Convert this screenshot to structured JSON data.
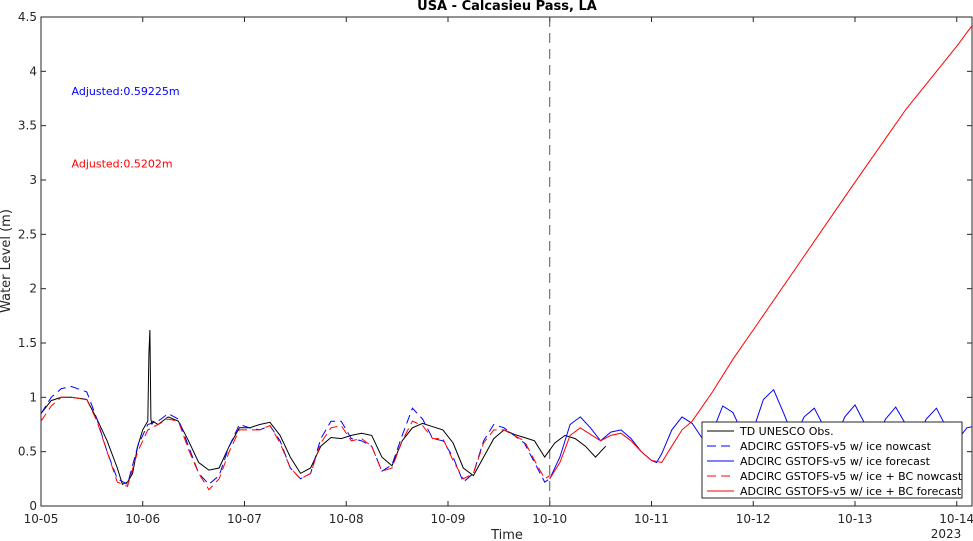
{
  "chart_data": {
    "type": "line",
    "title": "USA - Calcasieu Pass, LA",
    "xlabel": "Time",
    "ylabel": "Water Level (m)",
    "xlim": [
      0,
      9.15
    ],
    "ylim": [
      0,
      4.5
    ],
    "x_ticks": [
      {
        "value": 0,
        "label": "10-05"
      },
      {
        "value": 1,
        "label": "10-06"
      },
      {
        "value": 2,
        "label": "10-07"
      },
      {
        "value": 3,
        "label": "10-08"
      },
      {
        "value": 4,
        "label": "10-09"
      },
      {
        "value": 5,
        "label": "10-10"
      },
      {
        "value": 6,
        "label": "10-11"
      },
      {
        "value": 7,
        "label": "10-12"
      },
      {
        "value": 8,
        "label": "10-13"
      },
      {
        "value": 9,
        "label": "10-14"
      }
    ],
    "x_year_label": "2023",
    "y_ticks": [
      0,
      0.5,
      1,
      1.5,
      2,
      2.5,
      3,
      3.5,
      4,
      4.5
    ],
    "y_tick_labels": [
      "0",
      "0.5",
      "1",
      "1.5",
      "2",
      "2.5",
      "3",
      "3.5",
      "4",
      "4.5"
    ],
    "vline_x": 5.0,
    "annotations": [
      {
        "text": "Adjusted:0.59225m",
        "color": "#0000ff",
        "x": 0.3,
        "y": 3.82
      },
      {
        "text": "Adjusted:0.5202m",
        "color": "#ff0000",
        "x": 0.3,
        "y": 3.15
      }
    ],
    "legend_position": "bottom-right",
    "series": [
      {
        "name": "TD UNESCO Obs.",
        "color": "#000000",
        "style": "solid",
        "x": [
          0.0,
          0.1,
          0.2,
          0.3,
          0.45,
          0.55,
          0.65,
          0.75,
          0.8,
          0.85,
          0.9,
          0.95,
          1.0,
          1.03,
          1.05,
          1.06,
          1.07,
          1.08,
          1.09,
          1.1,
          1.15,
          1.25,
          1.35,
          1.45,
          1.55,
          1.65,
          1.75,
          1.85,
          1.95,
          2.05,
          2.15,
          2.25,
          2.35,
          2.45,
          2.55,
          2.65,
          2.75,
          2.85,
          2.95,
          3.05,
          3.15,
          3.25,
          3.35,
          3.45,
          3.55,
          3.65,
          3.75,
          3.85,
          3.95,
          4.05,
          4.15,
          4.25,
          4.35,
          4.45,
          4.55,
          4.65,
          4.75,
          4.85,
          4.95,
          5.05,
          5.15,
          5.25,
          5.35,
          5.45,
          5.55
        ],
        "y": [
          0.85,
          0.97,
          1.0,
          1.0,
          0.98,
          0.8,
          0.6,
          0.35,
          0.2,
          0.22,
          0.3,
          0.55,
          0.7,
          0.75,
          0.78,
          1.4,
          1.62,
          0.8,
          0.75,
          0.78,
          0.75,
          0.82,
          0.78,
          0.6,
          0.4,
          0.33,
          0.35,
          0.55,
          0.72,
          0.72,
          0.75,
          0.77,
          0.65,
          0.45,
          0.3,
          0.35,
          0.55,
          0.63,
          0.62,
          0.65,
          0.67,
          0.65,
          0.45,
          0.37,
          0.6,
          0.72,
          0.76,
          0.73,
          0.7,
          0.58,
          0.35,
          0.28,
          0.45,
          0.62,
          0.7,
          0.66,
          0.63,
          0.6,
          0.45,
          0.58,
          0.65,
          0.62,
          0.55,
          0.45,
          0.55
        ]
      },
      {
        "name": "ADCIRC GSTOFS-v5 w/ ice nowcast",
        "color": "#0000ff",
        "style": "dashed",
        "x": [
          0.0,
          0.1,
          0.2,
          0.3,
          0.45,
          0.55,
          0.65,
          0.75,
          0.85,
          0.95,
          1.05,
          1.15,
          1.25,
          1.35,
          1.45,
          1.55,
          1.65,
          1.75,
          1.85,
          1.95,
          2.05,
          2.15,
          2.25,
          2.35,
          2.45,
          2.55,
          2.65,
          2.75,
          2.85,
          2.95,
          3.05,
          3.15,
          3.25,
          3.35,
          3.45,
          3.55,
          3.65,
          3.75,
          3.85,
          3.95,
          4.05,
          4.15,
          4.25,
          4.35,
          4.45,
          4.55,
          4.65,
          4.75,
          4.85,
          4.95,
          5.0
        ],
        "y": [
          0.85,
          1.0,
          1.08,
          1.1,
          1.05,
          0.8,
          0.5,
          0.25,
          0.2,
          0.55,
          0.75,
          0.78,
          0.85,
          0.8,
          0.55,
          0.3,
          0.2,
          0.28,
          0.55,
          0.75,
          0.72,
          0.7,
          0.74,
          0.6,
          0.35,
          0.25,
          0.3,
          0.62,
          0.78,
          0.78,
          0.62,
          0.6,
          0.55,
          0.32,
          0.38,
          0.65,
          0.9,
          0.8,
          0.62,
          0.6,
          0.45,
          0.22,
          0.3,
          0.6,
          0.75,
          0.72,
          0.65,
          0.58,
          0.4,
          0.22,
          0.25
        ]
      },
      {
        "name": "ADCIRC GSTOFS-v5 w/ ice forecast",
        "color": "#0000ff",
        "style": "solid",
        "x": [
          5.0,
          5.1,
          5.2,
          5.3,
          5.4,
          5.5,
          5.6,
          5.7,
          5.8,
          5.9,
          6.0,
          6.05,
          6.1,
          6.2,
          6.3,
          6.4,
          6.5,
          6.6,
          6.7,
          6.8,
          6.9,
          7.0,
          7.1,
          7.2,
          7.3,
          7.4,
          7.5,
          7.6,
          7.7,
          7.8,
          7.9,
          8.0,
          8.1,
          8.2,
          8.3,
          8.4,
          8.5,
          8.6,
          8.7,
          8.8,
          8.9,
          9.0,
          9.1,
          9.15
        ],
        "y": [
          0.25,
          0.45,
          0.75,
          0.82,
          0.72,
          0.6,
          0.68,
          0.7,
          0.62,
          0.5,
          0.42,
          0.4,
          0.48,
          0.7,
          0.82,
          0.76,
          0.62,
          0.68,
          0.92,
          0.86,
          0.66,
          0.7,
          0.98,
          1.07,
          0.85,
          0.62,
          0.82,
          0.9,
          0.72,
          0.6,
          0.82,
          0.93,
          0.75,
          0.6,
          0.8,
          0.91,
          0.75,
          0.6,
          0.8,
          0.9,
          0.72,
          0.6,
          0.72,
          0.73
        ]
      },
      {
        "name": "ADCIRC GSTOFS-v5 w/ ice + BC nowcast",
        "color": "#ff0000",
        "style": "dashed",
        "x": [
          0.0,
          0.1,
          0.2,
          0.3,
          0.45,
          0.55,
          0.65,
          0.75,
          0.85,
          0.95,
          1.05,
          1.15,
          1.25,
          1.35,
          1.45,
          1.55,
          1.65,
          1.75,
          1.85,
          1.95,
          2.05,
          2.15,
          2.25,
          2.35,
          2.45,
          2.55,
          2.65,
          2.75,
          2.85,
          2.95,
          3.05,
          3.15,
          3.25,
          3.35,
          3.45,
          3.55,
          3.65,
          3.75,
          3.85,
          3.95,
          4.05,
          4.15,
          4.25,
          4.35,
          4.45,
          4.55,
          4.65,
          4.75,
          4.85,
          4.95,
          5.0
        ],
        "y": [
          0.78,
          0.92,
          1.0,
          1.0,
          0.98,
          0.78,
          0.5,
          0.22,
          0.18,
          0.5,
          0.7,
          0.75,
          0.8,
          0.78,
          0.52,
          0.3,
          0.15,
          0.25,
          0.5,
          0.7,
          0.7,
          0.7,
          0.74,
          0.58,
          0.35,
          0.25,
          0.3,
          0.58,
          0.72,
          0.74,
          0.6,
          0.62,
          0.55,
          0.32,
          0.35,
          0.6,
          0.78,
          0.74,
          0.62,
          0.62,
          0.42,
          0.25,
          0.3,
          0.58,
          0.7,
          0.7,
          0.65,
          0.6,
          0.42,
          0.25,
          0.28
        ]
      },
      {
        "name": "ADCIRC GSTOFS-v5 w/ ice + BC forecast",
        "color": "#ff0000",
        "style": "solid",
        "x": [
          5.0,
          5.1,
          5.2,
          5.3,
          5.4,
          5.5,
          5.6,
          5.7,
          5.8,
          5.9,
          6.0,
          6.1,
          6.2,
          6.3,
          6.4,
          6.6,
          6.8,
          7.0,
          7.5,
          8.0,
          8.5,
          9.0,
          9.15
        ],
        "y": [
          0.25,
          0.4,
          0.65,
          0.72,
          0.66,
          0.6,
          0.65,
          0.67,
          0.6,
          0.5,
          0.42,
          0.4,
          0.55,
          0.7,
          0.78,
          1.05,
          1.35,
          1.62,
          2.3,
          2.98,
          3.65,
          4.23,
          4.42
        ]
      }
    ]
  }
}
